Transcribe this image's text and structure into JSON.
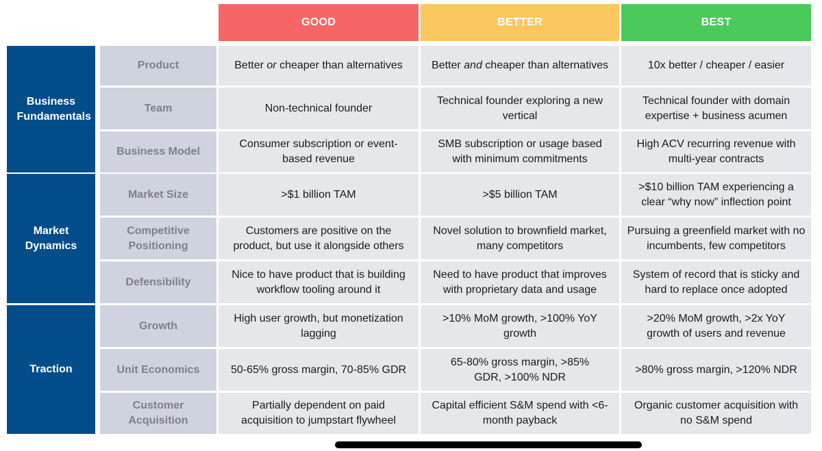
{
  "headers": {
    "good": "GOOD",
    "better": "BETTER",
    "best": "BEST"
  },
  "groups": {
    "business": "Business Fundamentals",
    "market": "Market Dynamics",
    "traction": "Traction"
  },
  "rows": [
    {
      "label": "Product",
      "good_pre": "Better ",
      "good_em": "or",
      "good_post": " cheaper than alternatives",
      "better_pre": "Better ",
      "better_em": "and",
      "better_post": " cheaper than alternatives",
      "best": "10x better / cheaper / easier"
    },
    {
      "label": "Team",
      "good": "Non-technical founder",
      "better": "Technical founder exploring a new vertical",
      "best": "Technical founder with domain expertise + business acumen"
    },
    {
      "label": "Business Model",
      "good": "Consumer subscription or event-based revenue",
      "better": "SMB subscription or usage based with minimum commitments",
      "best": "High ACV recurring revenue with multi-year contracts"
    },
    {
      "label": "Market Size",
      "good": ">$1 billion TAM",
      "better": ">$5 billion TAM",
      "best": ">$10 billion TAM experiencing a clear “why now” inflection point"
    },
    {
      "label": "Competitive Positioning",
      "good": "Customers are positive on the product, but use it alongside others",
      "better": "Novel solution to brownfield market, many competitors",
      "best": "Pursuing a greenfield market with no incumbents, few competitors"
    },
    {
      "label": "Defensibility",
      "good": "Nice to have product that is building workflow tooling around it",
      "better": "Need to have product that improves with proprietary data and usage",
      "best": "System of record that is sticky and hard to replace once adopted"
    },
    {
      "label": "Growth",
      "good": "High user growth, but monetization lagging",
      "better": ">10% MoM growth, >100% YoY growth",
      "best": ">20% MoM growth, >2x YoY growth of users and revenue"
    },
    {
      "label": "Unit Economics",
      "good": "50-65% gross margin, 70-85% GDR",
      "better": "65-80% gross margin, >85% GDR, >100% NDR",
      "best": ">80% gross margin, >120% NDR"
    },
    {
      "label": "Customer Acquisition",
      "good": "Partially dependent on paid acquisition to jumpstart flywheel",
      "better": "Capital efficient S&M spend with <6-month payback",
      "best": "Organic customer acquisition with no S&M spend"
    }
  ]
}
